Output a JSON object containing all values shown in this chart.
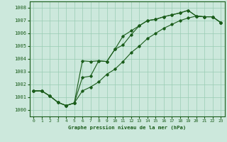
{
  "xlabel": "Graphe pression niveau de la mer (hPa)",
  "xlim": [
    -0.5,
    23.5
  ],
  "ylim": [
    999.5,
    1008.5
  ],
  "yticks": [
    1000,
    1001,
    1002,
    1003,
    1004,
    1005,
    1006,
    1007,
    1008
  ],
  "xticks": [
    0,
    1,
    2,
    3,
    4,
    5,
    6,
    7,
    8,
    9,
    10,
    11,
    12,
    13,
    14,
    15,
    16,
    17,
    18,
    19,
    20,
    21,
    22,
    23
  ],
  "bg_color": "#cce8dc",
  "line_color": "#1a5c1a",
  "grid_color": "#99ccb3",
  "line1_y": [
    1001.5,
    1001.5,
    1001.1,
    1000.6,
    1000.35,
    1000.55,
    1002.55,
    1002.65,
    1003.85,
    1003.8,
    1004.75,
    1005.8,
    1006.2,
    1006.6,
    1007.0,
    1007.1,
    1007.3,
    1007.45,
    1007.6,
    1007.8,
    1007.35,
    1007.3,
    1007.3,
    1006.85
  ],
  "line2_y": [
    1001.5,
    1001.5,
    1001.1,
    1000.6,
    1000.35,
    1000.55,
    1003.85,
    1003.8,
    1003.85,
    1003.8,
    1004.75,
    1005.1,
    1005.9,
    1006.6,
    1007.0,
    1007.1,
    1007.3,
    1007.45,
    1007.6,
    1007.8,
    1007.35,
    1007.3,
    1007.3,
    1006.85
  ],
  "line3_y": [
    1001.5,
    1001.5,
    1001.1,
    1000.6,
    1000.35,
    1000.55,
    1001.5,
    1001.8,
    1002.2,
    1002.8,
    1003.2,
    1003.8,
    1004.5,
    1005.0,
    1005.6,
    1006.0,
    1006.4,
    1006.7,
    1007.0,
    1007.2,
    1007.35,
    1007.3,
    1007.3,
    1006.85
  ]
}
